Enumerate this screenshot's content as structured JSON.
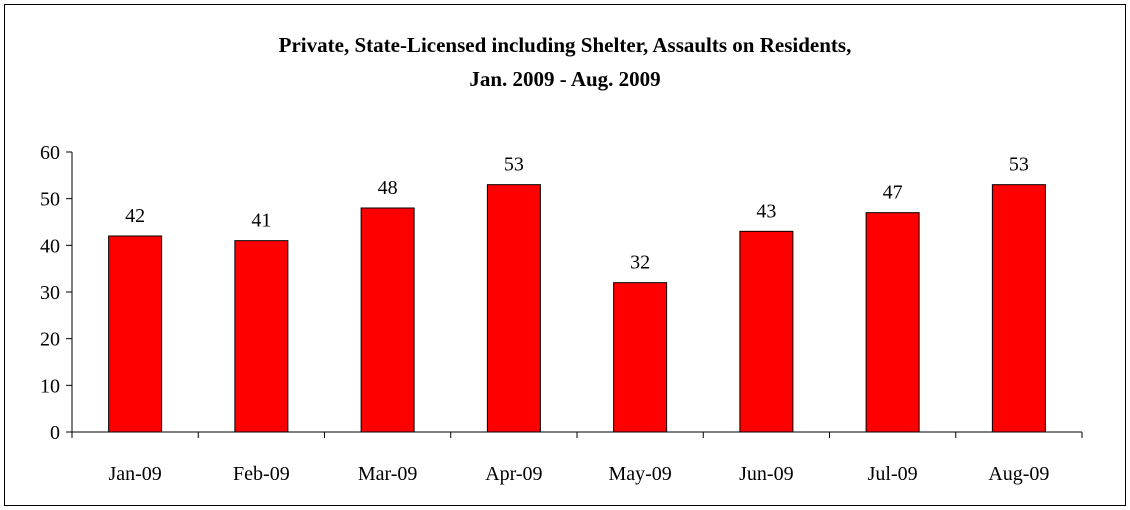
{
  "chart_data": {
    "type": "bar",
    "title": [
      "Private, State-Licensed including Shelter, Assaults on Residents,",
      "Jan. 2009 - Aug. 2009"
    ],
    "categories": [
      "Jan-09",
      "Feb-09",
      "Mar-09",
      "Apr-09",
      "May-09",
      "Jun-09",
      "Jul-09",
      "Aug-09"
    ],
    "values": [
      42,
      41,
      48,
      53,
      32,
      43,
      47,
      53
    ],
    "ylim": [
      0,
      60
    ],
    "yticks": [
      0,
      10,
      20,
      30,
      40,
      50,
      60
    ],
    "grid": false,
    "legend": "none",
    "bar_color": "#ff0000",
    "bar_outline": "#000000"
  }
}
